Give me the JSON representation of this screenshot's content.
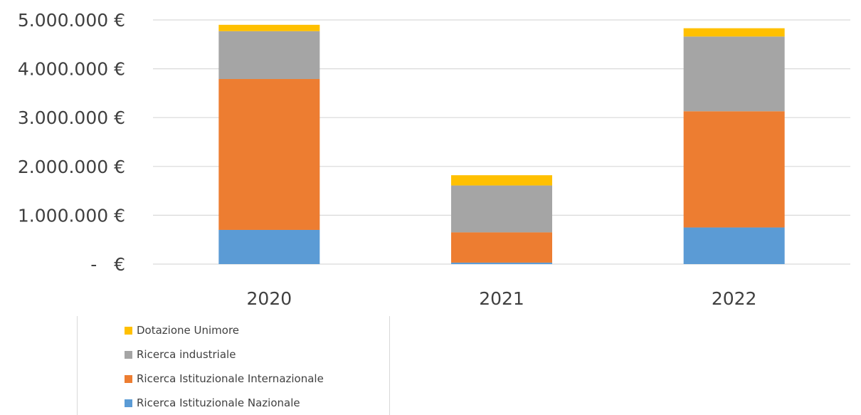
{
  "chart_data": {
    "type": "bar",
    "stacked": true,
    "categories": [
      "2020",
      "2021",
      "2022"
    ],
    "series": [
      {
        "name": "Ricerca Istituzionale Nazionale",
        "color": "#5B9BD5",
        "values": [
          700000,
          30000,
          750000
        ]
      },
      {
        "name": "Ricerca Istituzionale Internazionale",
        "color": "#ED7D31",
        "values": [
          3090000,
          620000,
          2380000
        ]
      },
      {
        "name": "Ricerca industriale",
        "color": "#A5A5A5",
        "values": [
          980000,
          960000,
          1530000
        ]
      },
      {
        "name": "Dotazione Unimore",
        "color": "#FFC000",
        "values": [
          130000,
          210000,
          170000
        ]
      }
    ],
    "y_ticks": [
      "-   €",
      "1.000.000 €",
      "2.000.000 €",
      "3.000.000 €",
      "4.000.000 €",
      "5.000.000 €"
    ],
    "ylim": [
      0,
      5000000
    ],
    "grid": true,
    "legend_position": "bottom-left",
    "legend_order": [
      "Dotazione Unimore",
      "Ricerca industriale",
      "Ricerca Istituzionale Internazionale",
      "Ricerca Istituzionale Nazionale"
    ]
  }
}
